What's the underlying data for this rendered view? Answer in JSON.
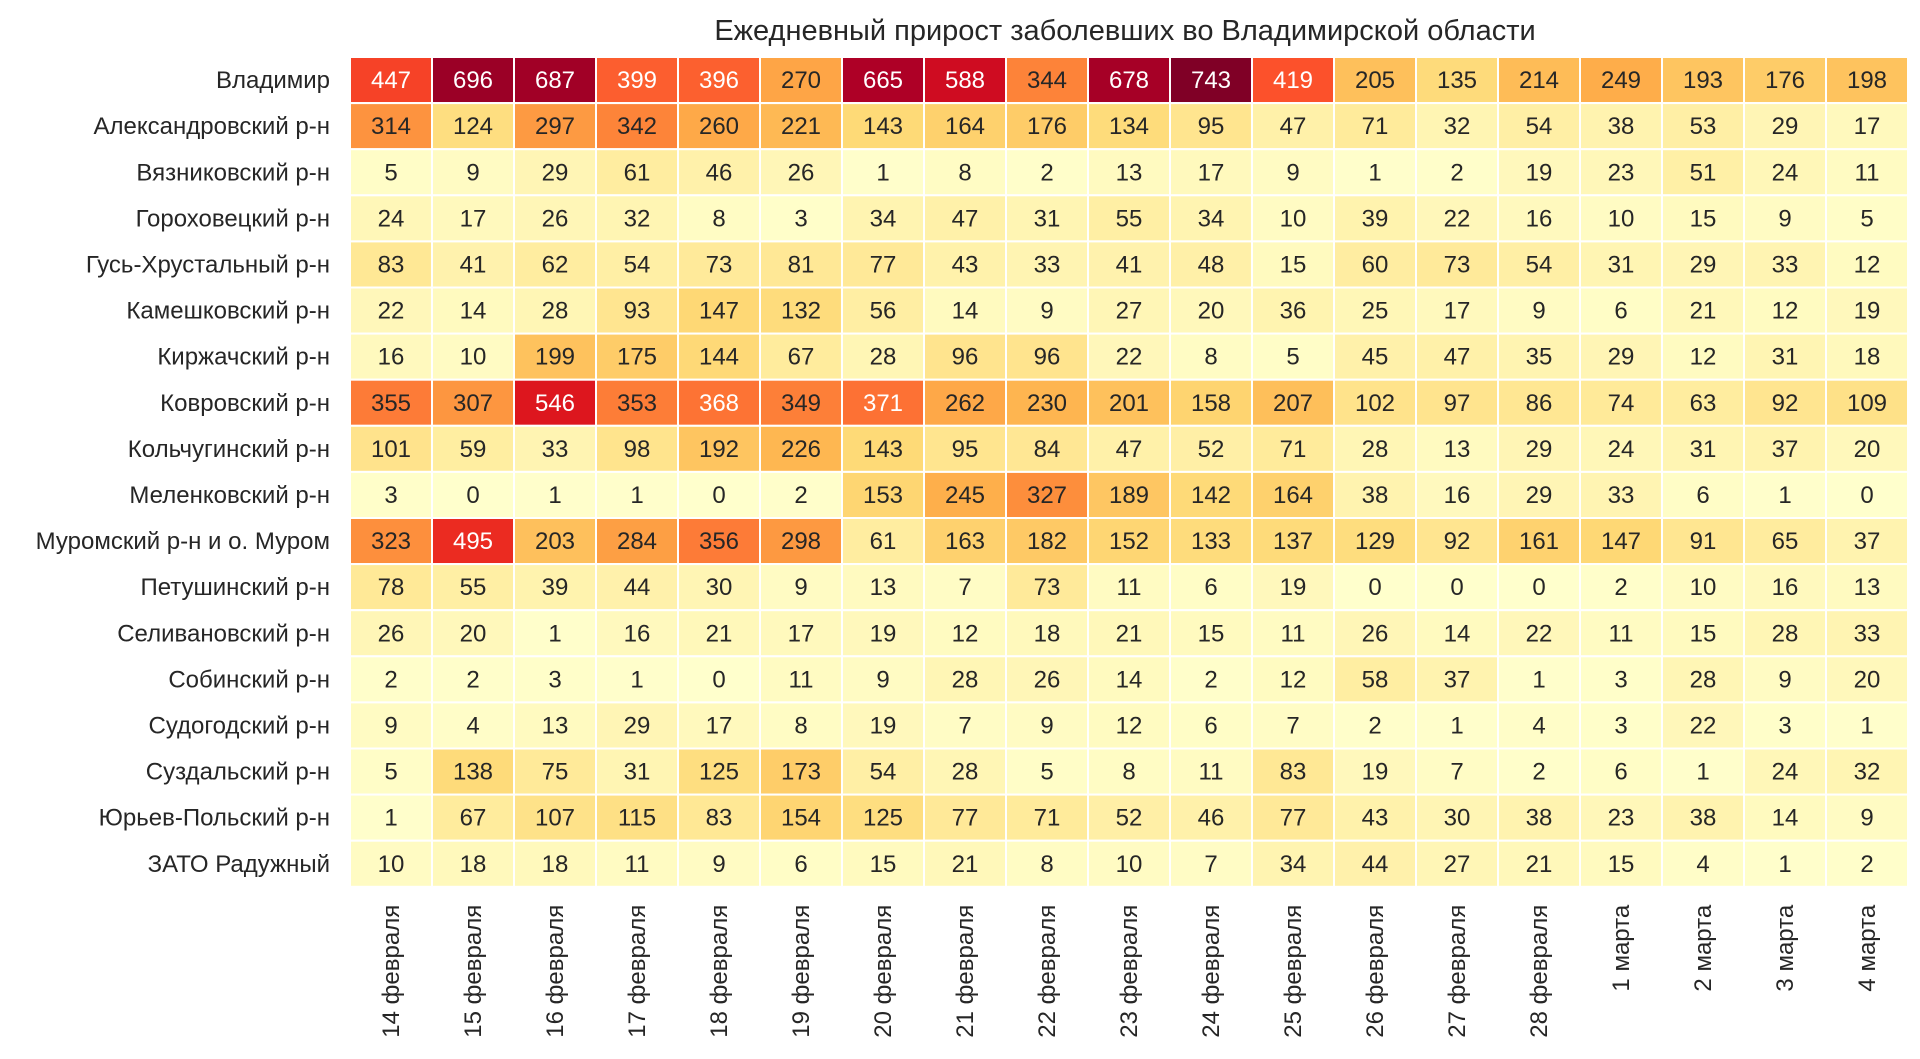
{
  "chart_data": {
    "type": "heatmap",
    "title": "Ежедневный прирост заболевших во Владимирской области",
    "colormap": "YlOrRd",
    "vmax": 743,
    "grid": false,
    "legend": "none",
    "rows": [
      "Владимир",
      "Александровский р-н",
      "Вязниковский р-н",
      "Гороховецкий р-н",
      "Гусь-Хрустальный р-н",
      "Камешковский р-н",
      "Киржачский р-н",
      "Ковровский р-н",
      "Кольчугинский р-н",
      "Меленковский р-н",
      "Муромский р-н и о. Муром",
      "Петушинский р-н",
      "Селивановский р-н",
      "Собинский р-н",
      "Судогодский р-н",
      "Суздальский р-н",
      "Юрьев-Польский р-н",
      "ЗАТО Радужный"
    ],
    "columns": [
      "14 февраля",
      "15 февраля",
      "16 февраля",
      "17 февраля",
      "18 февраля",
      "19 февраля",
      "20 февраля",
      "21 февраля",
      "22 февраля",
      "23 февраля",
      "24 февраля",
      "25 февраля",
      "26 февраля",
      "27 февраля",
      "28 февраля",
      "1 марта",
      "2 марта",
      "3 марта",
      "4 марта"
    ],
    "values": [
      [
        447,
        696,
        687,
        399,
        396,
        270,
        665,
        588,
        344,
        678,
        743,
        419,
        205,
        135,
        214,
        249,
        193,
        176,
        198
      ],
      [
        314,
        124,
        297,
        342,
        260,
        221,
        143,
        164,
        176,
        134,
        95,
        47,
        71,
        32,
        54,
        38,
        53,
        29,
        17
      ],
      [
        5,
        9,
        29,
        61,
        46,
        26,
        1,
        8,
        2,
        13,
        17,
        9,
        1,
        2,
        19,
        23,
        51,
        24,
        11
      ],
      [
        24,
        17,
        26,
        32,
        8,
        3,
        34,
        47,
        31,
        55,
        34,
        10,
        39,
        22,
        16,
        10,
        15,
        9,
        5
      ],
      [
        83,
        41,
        62,
        54,
        73,
        81,
        77,
        43,
        33,
        41,
        48,
        15,
        60,
        73,
        54,
        31,
        29,
        33,
        12
      ],
      [
        22,
        14,
        28,
        93,
        147,
        132,
        56,
        14,
        9,
        27,
        20,
        36,
        25,
        17,
        9,
        6,
        21,
        12,
        19
      ],
      [
        16,
        10,
        199,
        175,
        144,
        67,
        28,
        96,
        96,
        22,
        8,
        5,
        45,
        47,
        35,
        29,
        12,
        31,
        18
      ],
      [
        355,
        307,
        546,
        353,
        368,
        349,
        371,
        262,
        230,
        201,
        158,
        207,
        102,
        97,
        86,
        74,
        63,
        92,
        109
      ],
      [
        101,
        59,
        33,
        98,
        192,
        226,
        143,
        95,
        84,
        47,
        52,
        71,
        28,
        13,
        29,
        24,
        31,
        37,
        20
      ],
      [
        3,
        0,
        1,
        1,
        0,
        2,
        153,
        245,
        327,
        189,
        142,
        164,
        38,
        16,
        29,
        33,
        6,
        1,
        0
      ],
      [
        323,
        495,
        203,
        284,
        356,
        298,
        61,
        163,
        182,
        152,
        133,
        137,
        129,
        92,
        161,
        147,
        91,
        65,
        37
      ],
      [
        78,
        55,
        39,
        44,
        30,
        9,
        13,
        7,
        73,
        11,
        6,
        19,
        0,
        0,
        0,
        2,
        10,
        16,
        13
      ],
      [
        26,
        20,
        1,
        16,
        21,
        17,
        19,
        12,
        18,
        21,
        15,
        11,
        26,
        14,
        22,
        11,
        15,
        28,
        33
      ],
      [
        2,
        2,
        3,
        1,
        0,
        11,
        9,
        28,
        26,
        14,
        2,
        12,
        58,
        37,
        1,
        3,
        28,
        9,
        20
      ],
      [
        9,
        4,
        13,
        29,
        17,
        8,
        19,
        7,
        9,
        12,
        6,
        7,
        2,
        1,
        4,
        3,
        22,
        3,
        1
      ],
      [
        5,
        138,
        75,
        31,
        125,
        173,
        54,
        28,
        5,
        8,
        11,
        83,
        19,
        7,
        2,
        6,
        1,
        24,
        32
      ],
      [
        1,
        67,
        107,
        115,
        83,
        154,
        125,
        77,
        71,
        52,
        46,
        77,
        43,
        30,
        38,
        23,
        38,
        14,
        9
      ],
      [
        10,
        18,
        18,
        11,
        9,
        6,
        15,
        21,
        8,
        10,
        7,
        34,
        44,
        27,
        21,
        15,
        4,
        1,
        2
      ]
    ]
  }
}
